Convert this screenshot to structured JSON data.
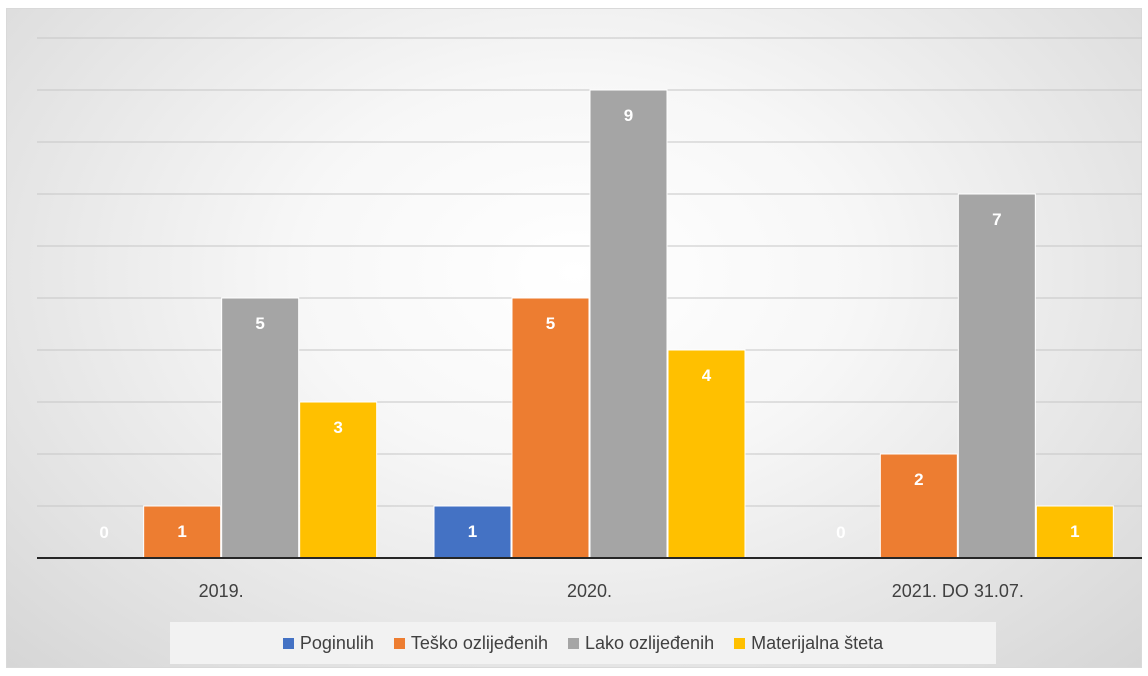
{
  "chart_data": {
    "type": "bar",
    "categories": [
      "2019.",
      "2020.",
      "2021. DO 31.07."
    ],
    "series": [
      {
        "name": "Poginulih",
        "values": [
          0,
          1,
          0
        ],
        "color": "#4472C4"
      },
      {
        "name": "Teško ozlijeđenih",
        "values": [
          1,
          5,
          2
        ],
        "color": "#ED7D31"
      },
      {
        "name": "Lako ozlijeđenih",
        "values": [
          5,
          9,
          7
        ],
        "color": "#A5A5A5"
      },
      {
        "name": "Materijalna šteta",
        "values": [
          3,
          4,
          1
        ],
        "color": "#FFC000"
      }
    ],
    "ylim": [
      0,
      9
    ],
    "grid": true,
    "legend_position": "bottom",
    "data_labels": true
  }
}
